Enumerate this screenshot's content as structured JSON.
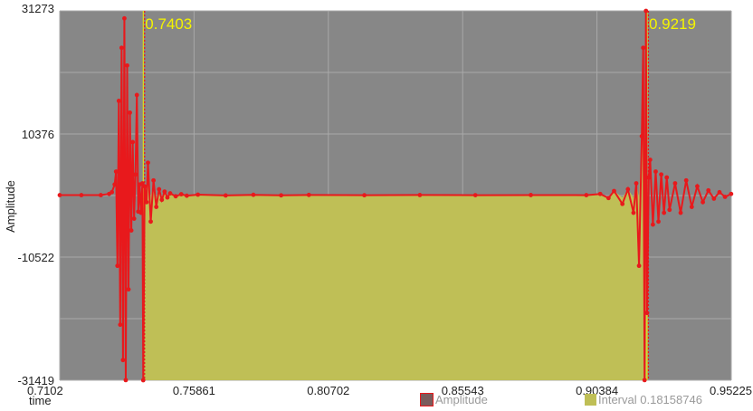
{
  "chart_data": {
    "type": "line",
    "title": "",
    "xlabel": "time",
    "ylabel": "Amplitude",
    "xlim": [
      0.7102,
      0.95225
    ],
    "ylim": [
      -31419,
      31273
    ],
    "x_ticks": [
      "0.7102",
      "0.75861",
      "0.80702",
      "0.85543",
      "0.90384",
      "0.95225"
    ],
    "y_ticks": [
      "31273",
      "10376",
      "-10522",
      "-31419"
    ],
    "y_tick_values": [
      31273,
      10376,
      -10522,
      -31419
    ],
    "grid": true,
    "background_color": "#878787",
    "series": [
      {
        "name": "Amplitude",
        "color": "#e8191c",
        "x": [
          0.7102,
          0.718,
          0.725,
          0.728,
          0.729,
          0.73,
          0.7305,
          0.731,
          0.7315,
          0.732,
          0.7325,
          0.733,
          0.7335,
          0.734,
          0.7345,
          0.735,
          0.7355,
          0.736,
          0.7365,
          0.737,
          0.7375,
          0.738,
          0.7385,
          0.739,
          0.7395,
          0.74,
          0.7403,
          0.7408,
          0.7415,
          0.742,
          0.743,
          0.744,
          0.745,
          0.746,
          0.747,
          0.748,
          0.749,
          0.75,
          0.752,
          0.754,
          0.756,
          0.76,
          0.77,
          0.78,
          0.79,
          0.8,
          0.82,
          0.84,
          0.86,
          0.88,
          0.9,
          0.905,
          0.908,
          0.91,
          0.913,
          0.915,
          0.917,
          0.918,
          0.919,
          0.92,
          0.9205,
          0.921,
          0.9215,
          0.9219,
          0.9225,
          0.923,
          0.924,
          0.925,
          0.926,
          0.927,
          0.928,
          0.929,
          0.93,
          0.932,
          0.934,
          0.936,
          0.938,
          0.94,
          0.942,
          0.944,
          0.946,
          0.948,
          0.95,
          0.9522
        ],
        "values": [
          0,
          0,
          0,
          200,
          500,
          1800,
          4000,
          -12000,
          16000,
          -22000,
          25000,
          -28000,
          30000,
          -31400,
          22000,
          -16000,
          14000,
          -6000,
          9000,
          -4000,
          3500,
          17000,
          -2800,
          1800,
          -3000,
          2000,
          -31419,
          1500,
          -1200,
          5500,
          -4500,
          2500,
          -2000,
          1000,
          -800,
          600,
          -400,
          300,
          -200,
          150,
          -100,
          80,
          -60,
          50,
          -40,
          30,
          -20,
          15,
          -10,
          10,
          -8,
          200,
          -500,
          700,
          -1500,
          1000,
          -3000,
          2000,
          -12000,
          10000,
          25000,
          -31400,
          31273,
          -20000,
          3000,
          6000,
          -5000,
          4000,
          -4500,
          3500,
          -3000,
          3000,
          -2500,
          2000,
          -3000,
          2500,
          -2000,
          1500,
          -1200,
          800,
          -600,
          500,
          -300,
          200
        ]
      },
      {
        "name": "Interval 0.18158746",
        "color": "#bfbf56",
        "x_start": 0.7403,
        "x_end": 0.9219
      }
    ],
    "markers": [
      {
        "x": 0.7403,
        "label": "0.7403"
      },
      {
        "x": 0.9219,
        "label": "0.9219"
      }
    ]
  }
}
